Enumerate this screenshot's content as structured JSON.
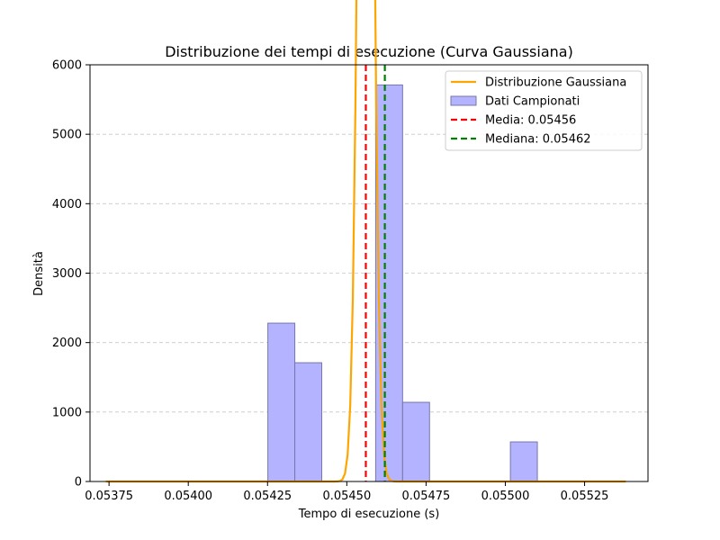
{
  "chart_data": {
    "type": "histogram",
    "title": "Distribuzione dei tempi di esecuzione (Curva Gaussiana)",
    "xlabel": "Tempo di esecuzione (s)",
    "ylabel": "Densità",
    "xlim": [
      0.05369,
      0.05545
    ],
    "ylim": [
      0,
      6000
    ],
    "x_ticks": [
      "0.05375",
      "0.05400",
      "0.05425",
      "0.05450",
      "0.05475",
      "0.05500",
      "0.05525"
    ],
    "x_tick_values": [
      0.05375,
      0.054,
      0.05425,
      0.0545,
      0.05475,
      0.055,
      0.05525
    ],
    "y_ticks": [
      "0",
      "1000",
      "2000",
      "3000",
      "4000",
      "5000",
      "6000"
    ],
    "y_tick_values": [
      0,
      1000,
      2000,
      3000,
      4000,
      5000,
      6000
    ],
    "grid": {
      "axis": "y",
      "style": "dashed"
    },
    "legend_position": "top-right",
    "histogram": {
      "name": "Dati Campionati",
      "color": "#b3b3ff",
      "edge_color": "#7777aa",
      "bin_edges": [
        0.054251,
        0.054336,
        0.054421,
        0.054506,
        0.054591,
        0.054676,
        0.054761,
        0.054846,
        0.054931,
        0.055016,
        0.055101
      ],
      "densities": [
        2280,
        1710,
        0,
        0,
        5710,
        1140,
        0,
        0,
        0,
        570
      ]
    },
    "gaussian": {
      "name": "Distribuzione Gaussiana",
      "color": "#ffa500",
      "mean": 0.05456,
      "std": 2.05e-05,
      "x_range": [
        0.05374,
        0.05538
      ]
    },
    "vlines": [
      {
        "name": "Media: 0.05456",
        "x": 0.05456,
        "color": "#ff0000"
      },
      {
        "name": "Mediana: 0.05462",
        "x": 0.05462,
        "color": "#008000"
      }
    ]
  }
}
